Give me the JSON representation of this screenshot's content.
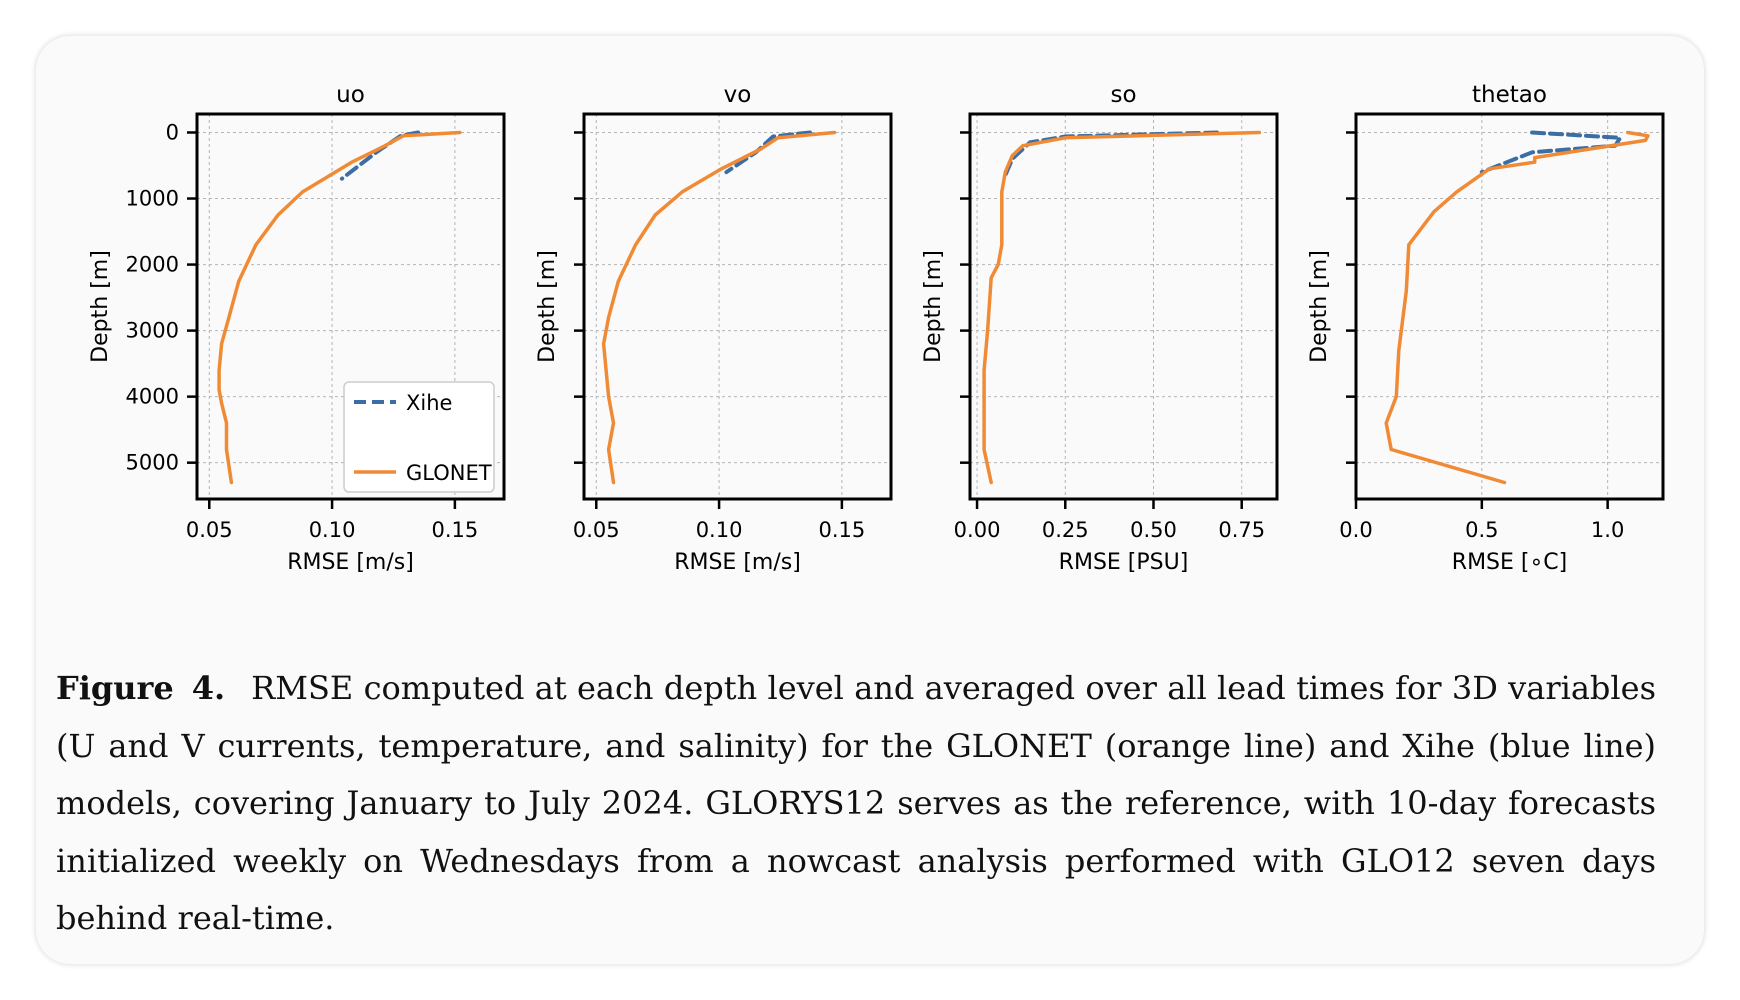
{
  "chart_data": [
    {
      "type": "line",
      "title": "uo",
      "xlabel": "RMSE [m/s]",
      "ylabel": "Depth [m]",
      "xlim": [
        0.045,
        0.17
      ],
      "ylim": [
        5550,
        -280
      ],
      "xticks": [
        0.05,
        0.1,
        0.15
      ],
      "xtick_labels": [
        "0.05",
        "0.10",
        "0.15"
      ],
      "yticks": [
        0,
        1000,
        2000,
        3000,
        4000,
        5000
      ],
      "ytick_labels": [
        "0",
        "1000",
        "2000",
        "3000",
        "4000",
        "5000"
      ],
      "grid": true,
      "legend": "lower-right",
      "series": [
        {
          "name": "Xihe",
          "x": [
            0.135,
            0.128,
            0.118,
            0.104
          ],
          "y": [
            0,
            50,
            300,
            700
          ]
        },
        {
          "name": "GLONET",
          "x": [
            0.152,
            0.129,
            0.12,
            0.108,
            0.088,
            0.078,
            0.069,
            0.062,
            0.058,
            0.055,
            0.054,
            0.054,
            0.055,
            0.057,
            0.057,
            0.059
          ],
          "y": [
            0,
            50,
            230,
            450,
            900,
            1250,
            1700,
            2250,
            2800,
            3200,
            3600,
            3900,
            4100,
            4400,
            4800,
            5300
          ]
        }
      ]
    },
    {
      "type": "line",
      "title": "vo",
      "xlabel": "RMSE [m/s]",
      "ylabel": "Depth [m]",
      "xlim": [
        0.045,
        0.17
      ],
      "ylim": [
        5550,
        -280
      ],
      "xticks": [
        0.05,
        0.1,
        0.15
      ],
      "xtick_labels": [
        "0.05",
        "0.10",
        "0.15"
      ],
      "grid": true,
      "series": [
        {
          "name": "Xihe",
          "x": [
            0.137,
            0.122,
            0.115,
            0.103
          ],
          "y": [
            0,
            60,
            300,
            600
          ]
        },
        {
          "name": "GLONET",
          "x": [
            0.147,
            0.124,
            0.117,
            0.101,
            0.085,
            0.074,
            0.066,
            0.059,
            0.055,
            0.053,
            0.054,
            0.055,
            0.057,
            0.055,
            0.057
          ],
          "y": [
            0,
            80,
            250,
            550,
            900,
            1250,
            1700,
            2250,
            2800,
            3200,
            3600,
            4000,
            4400,
            4800,
            5300
          ]
        }
      ]
    },
    {
      "type": "line",
      "title": "so",
      "xlabel": "RMSE [PSU]",
      "ylabel": "Depth [m]",
      "xlim": [
        -0.02,
        0.85
      ],
      "ylim": [
        5550,
        -280
      ],
      "xticks": [
        0.0,
        0.25,
        0.5,
        0.75
      ],
      "xtick_labels": [
        "0.00",
        "0.25",
        "0.50",
        "0.75"
      ],
      "grid": true,
      "series": [
        {
          "name": "Xihe",
          "x": [
            0.68,
            0.25,
            0.15,
            0.1,
            0.08
          ],
          "y": [
            0,
            60,
            150,
            400,
            650
          ]
        },
        {
          "name": "GLONET",
          "x": [
            0.8,
            0.25,
            0.13,
            0.1,
            0.08,
            0.07,
            0.07,
            0.07,
            0.06,
            0.04,
            0.03,
            0.02,
            0.02,
            0.02,
            0.02,
            0.04
          ],
          "y": [
            0,
            80,
            200,
            350,
            600,
            900,
            1250,
            1700,
            2000,
            2200,
            3000,
            3600,
            4000,
            4500,
            4800,
            5300
          ]
        }
      ]
    },
    {
      "type": "line",
      "title": "thetao",
      "xlabel": "RMSE [$^\\circ$C]",
      "ylabel": "Depth [m]",
      "xlim": [
        0.0,
        1.22
      ],
      "ylim": [
        5550,
        -280
      ],
      "xticks": [
        0.0,
        0.5,
        1.0
      ],
      "xtick_labels": [
        "0.0",
        "0.5",
        "1.0"
      ],
      "grid": true,
      "series": [
        {
          "name": "Xihe",
          "x": [
            0.7,
            1.05,
            1.03,
            0.7,
            0.5
          ],
          "y": [
            0,
            80,
            200,
            300,
            600
          ]
        },
        {
          "name": "GLONET",
          "x": [
            1.08,
            1.16,
            1.15,
            0.71,
            0.71,
            0.53,
            0.4,
            0.31,
            0.21,
            0.2,
            0.17,
            0.16,
            0.12,
            0.14,
            0.59
          ],
          "y": [
            0,
            50,
            120,
            380,
            450,
            550,
            900,
            1200,
            1700,
            2400,
            3300,
            4000,
            4400,
            4800,
            5300
          ]
        }
      ]
    }
  ],
  "colors": {
    "Xihe": "#3b6ea5",
    "GLONET": "#f08a35",
    "grid": "#b5b5b5",
    "axes": "#000000"
  },
  "caption": {
    "figure_label": "Figure",
    "figure_number": "4.",
    "text": "RMSE computed at each depth level and averaged over all lead times for 3D variables (U and V currents, temperature, and salinity) for the GLONET (orange line) and Xihe (blue line) models, covering January to July 2024. GLORYS12 serves as the reference, with 10-day forecasts initialized weekly on Wednesdays from a nowcast analysis performed with GLO12 seven days behind real-time."
  }
}
